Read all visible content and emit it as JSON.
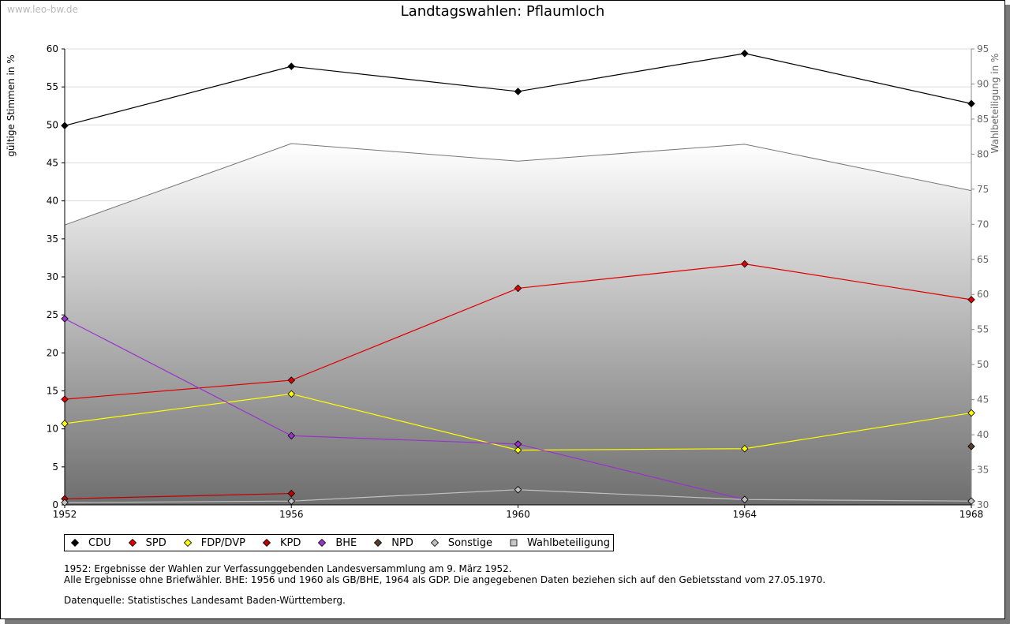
{
  "watermark": "www.leo-bw.de",
  "chart_data": {
    "type": "line",
    "title": "Landtagswahlen: Pflaumloch",
    "ylabel": "gültige Stimmen in %",
    "y2label": "Wahlbeteiligung in %",
    "x": [
      1952,
      1956,
      1960,
      1964,
      1968
    ],
    "ylim": [
      0,
      60
    ],
    "y_ticks": [
      0,
      5,
      10,
      15,
      20,
      25,
      30,
      35,
      40,
      45,
      50,
      55,
      60
    ],
    "y2lim": [
      30,
      95
    ],
    "y2_ticks": [
      30,
      35,
      40,
      45,
      50,
      55,
      60,
      65,
      70,
      75,
      80,
      85,
      90,
      95
    ],
    "grid": true,
    "legend_position": "bottom",
    "area": {
      "name": "Wahlbeteiligung",
      "axis": "right",
      "values": [
        69.9,
        81.5,
        79.0,
        81.4,
        74.8
      ],
      "color": "#808080"
    },
    "series": [
      {
        "name": "CDU",
        "color": "#000000",
        "values": [
          49.9,
          57.7,
          54.4,
          59.4,
          52.8
        ]
      },
      {
        "name": "SPD",
        "color": "#e00000",
        "values": [
          13.9,
          16.4,
          28.5,
          31.7,
          27.0
        ]
      },
      {
        "name": "FDP/DVP",
        "color": "#ffff00",
        "values": [
          10.7,
          14.6,
          7.2,
          7.4,
          12.1
        ]
      },
      {
        "name": "KPD",
        "color": "#c00000",
        "values": [
          0.8,
          1.5,
          null,
          null,
          null
        ]
      },
      {
        "name": "BHE",
        "color": "#9933cc",
        "values": [
          24.5,
          9.1,
          8.0,
          0.7,
          null
        ]
      },
      {
        "name": "NPD",
        "color": "#5a3a2a",
        "values": [
          null,
          null,
          null,
          null,
          7.7
        ]
      },
      {
        "name": "Sonstige",
        "color": "#c0c0c0",
        "values": [
          0.3,
          0.5,
          2.0,
          0.7,
          0.5
        ]
      }
    ]
  },
  "legend": [
    {
      "label": "CDU",
      "shape": "diamond",
      "color": "#000000"
    },
    {
      "label": "SPD",
      "shape": "diamond",
      "color": "#e00000"
    },
    {
      "label": "FDP/DVP",
      "shape": "diamond",
      "color": "#ffff00"
    },
    {
      "label": "KPD",
      "shape": "diamond",
      "color": "#c00000"
    },
    {
      "label": "BHE",
      "shape": "diamond",
      "color": "#9933cc"
    },
    {
      "label": "NPD",
      "shape": "diamond",
      "color": "#5a3a2a"
    },
    {
      "label": "Sonstige",
      "shape": "diamond",
      "color": "#c0c0c0"
    },
    {
      "label": "Wahlbeteiligung",
      "shape": "square",
      "color": "#c8c8c8"
    }
  ],
  "notes": {
    "line1": "1952: Ergebnisse der Wahlen zur Verfassunggebenden Landesversammlung am 9. März 1952.",
    "line2": "Alle Ergebnisse ohne Briefwähler. BHE: 1956 und 1960 als GB/BHE, 1964 als GDP. Die angegebenen Daten beziehen sich auf den Gebietsstand vom 27.05.1970.",
    "source": "Datenquelle: Statistisches Landesamt Baden-Württemberg."
  }
}
